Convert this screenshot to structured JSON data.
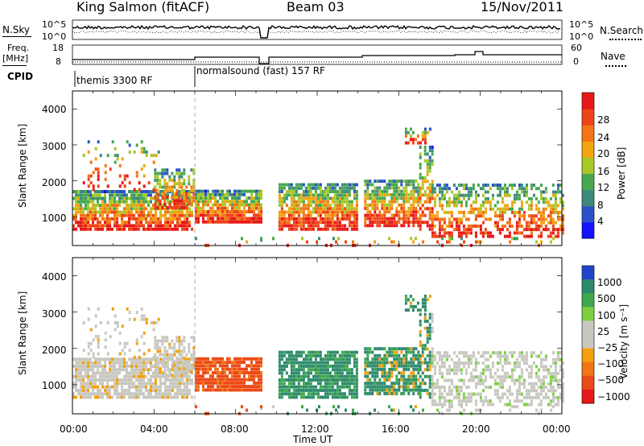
{
  "header": {
    "station": "King Salmon (fitACF)",
    "beam": "Beam 03",
    "date": "15/Nov/2011"
  },
  "strip": {
    "nsky_label": "N.Sky",
    "nsky_ticks": [
      "10^5",
      "10^0"
    ],
    "nsearch_label": "N.Search",
    "freq_label_1": "Freq.",
    "freq_label_2": "[MHz]",
    "freq_ticks": [
      "18",
      "8"
    ],
    "nave_label": "Nave",
    "nave_ticks": [
      "60",
      "0"
    ],
    "cpid_label": "CPID",
    "cpid_1": "themis 3300 RF",
    "cpid_2": "normalsound (fast) 157 RF"
  },
  "chart_data": [
    {
      "type": "heatmap",
      "panel": "power",
      "ylabel": "Slant Range [km]",
      "yticks": [
        "1000",
        "2000",
        "3000",
        "4000"
      ],
      "ylim": [
        200,
        4500
      ],
      "colorbar_label": "Power [dB]",
      "colorbar_ticks": [
        "4",
        "8",
        "12",
        "16",
        "20",
        "24",
        "28"
      ],
      "colorbar_colors": [
        "#1414ff",
        "#2b52c8",
        "#3e8a7c",
        "#47a850",
        "#a8c828",
        "#f2a410",
        "#f47416",
        "#ee4418",
        "#e81818"
      ]
    },
    {
      "type": "heatmap",
      "panel": "velocity",
      "ylabel": "Slant Range [km]",
      "yticks": [
        "1000",
        "2000",
        "3000",
        "4000"
      ],
      "ylim": [
        200,
        4500
      ],
      "colorbar_label": "Velocity [m s⁻¹]",
      "colorbar_ticks": [
        "1000",
        "500",
        "100",
        "25",
        "−25",
        "−100",
        "−500",
        "−1000"
      ],
      "colorbar_colors": [
        "#2244cc",
        "#2e8a6c",
        "#3ea84e",
        "#7cd040",
        "#c8c8c0",
        "#c8c8c0",
        "#f2a010",
        "#f07418",
        "#ec4a18",
        "#e81818"
      ]
    }
  ],
  "xaxis": {
    "label": "Time UT",
    "ticks": [
      "00:00",
      "04:00",
      "08:00",
      "12:00",
      "16:00",
      "20:00",
      "00:00"
    ]
  }
}
